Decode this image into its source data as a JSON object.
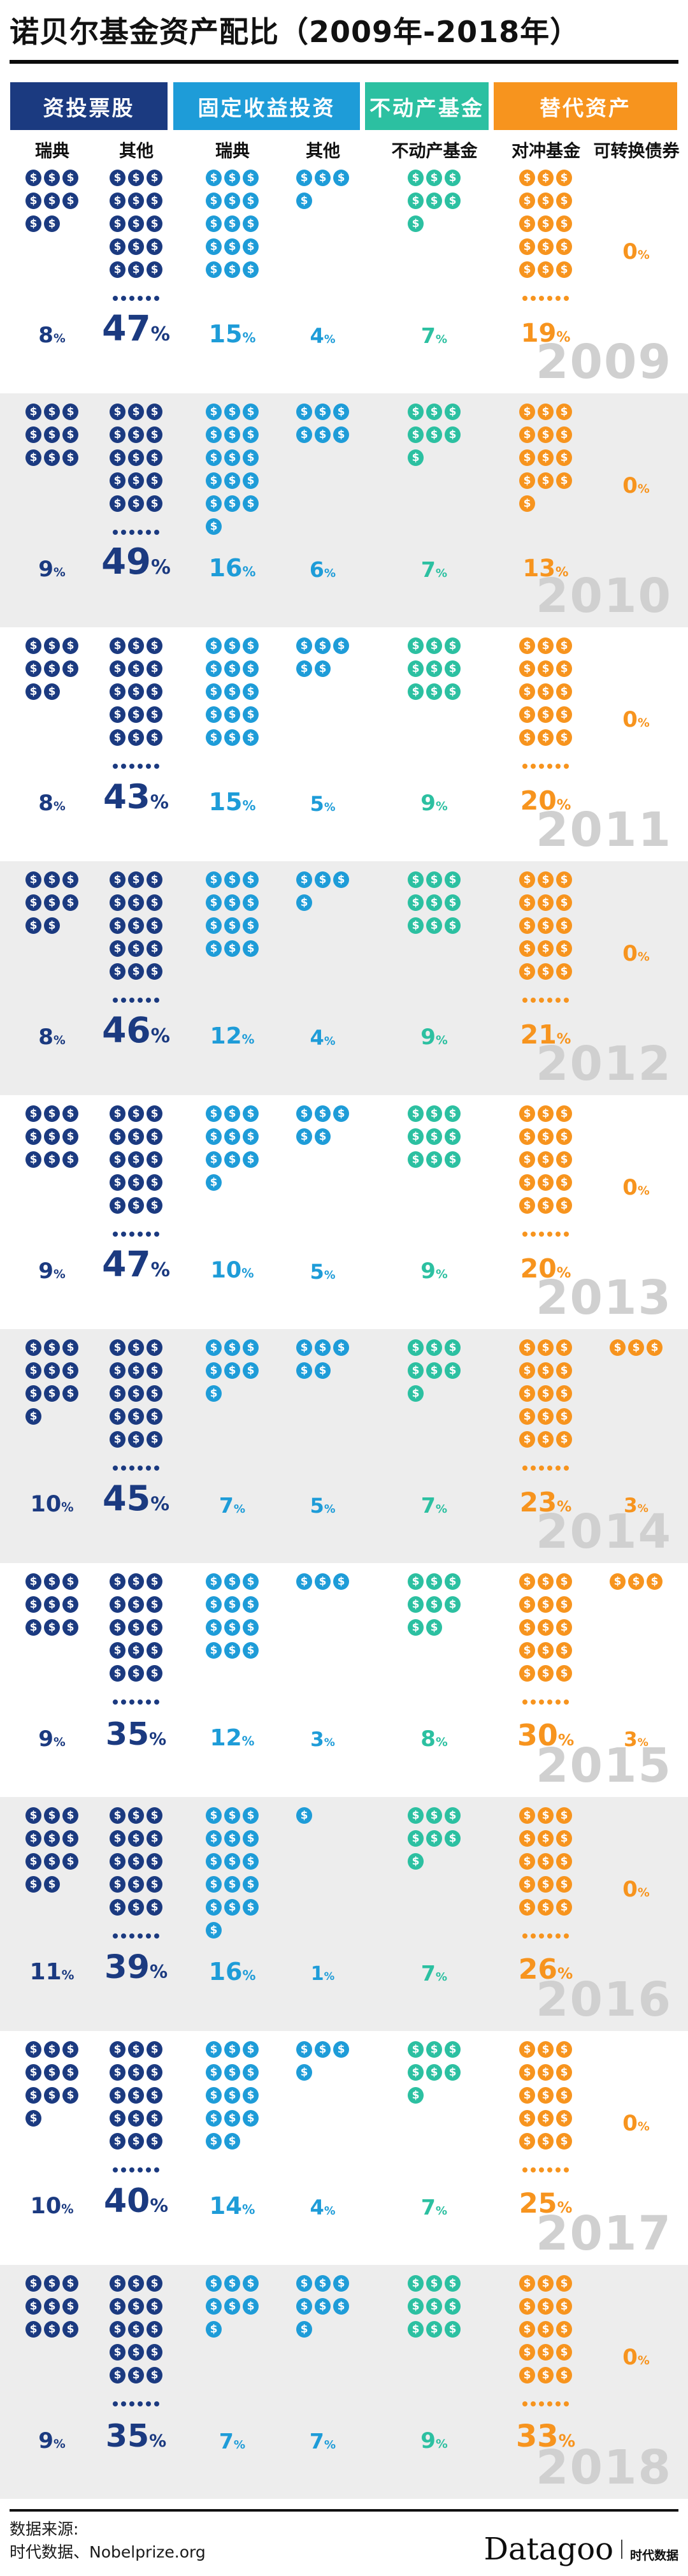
{
  "title": "诺贝尔基金资产配比（2009年-2018年）",
  "percent_sign": "%",
  "header": {
    "groups": [
      {
        "label": "资投票股",
        "color": "#1b3a80"
      },
      {
        "label": "固定收益投资",
        "color": "#1e9cd8"
      },
      {
        "label": "不动产基金",
        "color": "#2cc0a1"
      },
      {
        "label": "替代资产",
        "color": "#f7941e"
      }
    ]
  },
  "columns": [
    {
      "label": "瑞典",
      "group": 0
    },
    {
      "label": "其他",
      "group": 0
    },
    {
      "label": "瑞典",
      "group": 1
    },
    {
      "label": "其他",
      "group": 1
    },
    {
      "label": "不动产基金",
      "group": 2
    },
    {
      "label": "对冲基金",
      "group": 3
    },
    {
      "label": "可转换债券",
      "group": 3
    }
  ],
  "years": [
    {
      "year": "2009",
      "values": [
        8,
        47,
        15,
        4,
        7,
        19,
        0
      ]
    },
    {
      "year": "2010",
      "values": [
        9,
        49,
        16,
        6,
        7,
        13,
        0
      ]
    },
    {
      "year": "2011",
      "values": [
        8,
        43,
        15,
        5,
        9,
        20,
        0
      ]
    },
    {
      "year": "2012",
      "values": [
        8,
        46,
        12,
        4,
        9,
        21,
        0
      ]
    },
    {
      "year": "2013",
      "values": [
        9,
        47,
        10,
        5,
        9,
        20,
        0
      ]
    },
    {
      "year": "2014",
      "values": [
        10,
        45,
        7,
        5,
        7,
        23,
        3
      ]
    },
    {
      "year": "2015",
      "values": [
        9,
        35,
        12,
        3,
        8,
        30,
        3
      ]
    },
    {
      "year": "2016",
      "values": [
        11,
        39,
        16,
        1,
        7,
        26,
        0
      ]
    },
    {
      "year": "2017",
      "values": [
        10,
        40,
        14,
        4,
        7,
        25,
        0
      ]
    },
    {
      "year": "2018",
      "values": [
        9,
        35,
        7,
        7,
        9,
        33,
        0
      ]
    }
  ],
  "footer": {
    "source_line1": "数据来源:",
    "source_line2": "时代数据、Nobelprize.org",
    "brand": "Datagoo",
    "brand_suffix": "时代数据"
  },
  "chart_data": {
    "type": "bar",
    "subtype": "pictogram",
    "title": "诺贝尔基金资产配比（2009年-2018年）",
    "unit": "%",
    "categories": [
      "2009",
      "2010",
      "2011",
      "2012",
      "2013",
      "2014",
      "2015",
      "2016",
      "2017",
      "2018"
    ],
    "series": [
      {
        "name": "资投票股-瑞典",
        "color": "#1b3a80",
        "values": [
          8,
          9,
          8,
          8,
          9,
          10,
          9,
          11,
          10,
          9
        ]
      },
      {
        "name": "资投票股-其他",
        "color": "#1b3a80",
        "values": [
          47,
          49,
          43,
          46,
          47,
          45,
          35,
          39,
          40,
          35
        ]
      },
      {
        "name": "固定收益投资-瑞典",
        "color": "#1e9cd8",
        "values": [
          15,
          16,
          15,
          12,
          10,
          7,
          12,
          16,
          14,
          7
        ]
      },
      {
        "name": "固定收益投资-其他",
        "color": "#1e9cd8",
        "values": [
          4,
          6,
          5,
          4,
          5,
          5,
          3,
          1,
          4,
          7
        ]
      },
      {
        "name": "不动产基金",
        "color": "#2cc0a1",
        "values": [
          7,
          7,
          9,
          9,
          9,
          7,
          8,
          7,
          7,
          9
        ]
      },
      {
        "name": "替代资产-对冲基金",
        "color": "#f7941e",
        "values": [
          19,
          13,
          20,
          21,
          20,
          23,
          30,
          26,
          25,
          33
        ]
      },
      {
        "name": "替代资产-可转换债券",
        "color": "#f7941e",
        "values": [
          0,
          0,
          0,
          0,
          0,
          3,
          3,
          0,
          0,
          0
        ]
      }
    ],
    "legend_position": "top",
    "grid": false,
    "notes": "Pictogram: one $ coin = 1%; columns showing more than 16% are truncated to 15 coins plus an ellipsis of 6 dots; 0% values are printed as a label only, placed at mid-column height."
  }
}
